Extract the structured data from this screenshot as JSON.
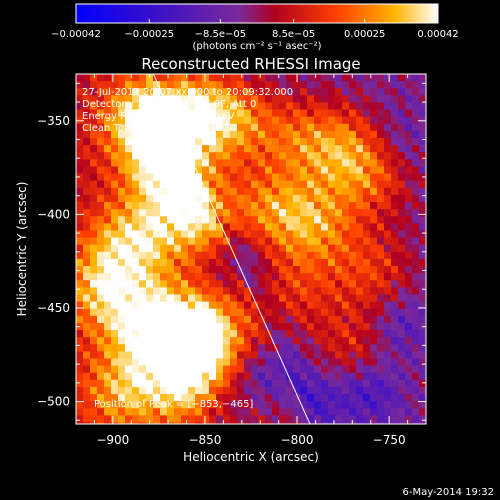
{
  "chart_data": {
    "type": "heatmap",
    "title": "Reconstructed RHESSI Image",
    "xlabel": "Heliocentric X (arcsec)",
    "ylabel": "Heliocentric Y (arcsec)",
    "x_range": [
      -920,
      -730
    ],
    "y_range": [
      -512,
      -325
    ],
    "x_ticks": [
      -900,
      -850,
      -800,
      -750
    ],
    "y_ticks": [
      -350,
      -400,
      -450,
      -500
    ],
    "x_tick_labels": [
      "−900",
      "−850",
      "−800",
      "−750"
    ],
    "y_tick_labels": [
      "−350",
      "−400",
      "−450",
      "−500"
    ],
    "colorbar": {
      "range": [
        -0.00042,
        0.00042
      ],
      "ticks": [
        -0.00042,
        -0.00025,
        -8.5e-05,
        8.5e-05,
        0.00025,
        0.00042
      ],
      "tick_labels": [
        "−0.00042",
        "−0.00025",
        "−8.5e−05",
        "8.5e−05",
        "0.00025",
        "0.00042"
      ],
      "units": "(photons cm⁻² s⁻¹ asec⁻²)"
    },
    "annotations": [
      "27-Jul-2012 20:07:xx.000 to 20:09:32.000",
      "Detectors: 3F 5F 6F 7F 8F 9F, Att 0",
      "Energy Range: 12.0 - 25.0 keV",
      "Clean     Total counts: 1.70E+03"
    ],
    "peak_label": "Position of Peak = [−853,−465]",
    "peak": [
      -853,
      -465
    ],
    "limb_line": [
      [
        -878,
        -325
      ],
      [
        -793,
        -512
      ]
    ],
    "hot_spots": [
      {
        "x": -860,
        "y": -345,
        "v": 0.00036
      },
      {
        "x": -885,
        "y": -350,
        "v": 0.0003
      },
      {
        "x": -870,
        "y": -375,
        "v": 0.00033
      },
      {
        "x": -855,
        "y": -400,
        "v": 0.00031
      },
      {
        "x": -835,
        "y": -350,
        "v": 0.00028
      },
      {
        "x": -890,
        "y": -415,
        "v": 0.00029
      },
      {
        "x": -905,
        "y": -440,
        "v": 0.00026
      },
      {
        "x": -880,
        "y": -460,
        "v": 0.00034
      },
      {
        "x": -853,
        "y": -465,
        "v": 0.00042
      },
      {
        "x": -860,
        "y": -490,
        "v": 0.0003
      },
      {
        "x": -895,
        "y": -495,
        "v": 0.00024
      },
      {
        "x": -800,
        "y": -360,
        "v": 0.0002
      },
      {
        "x": -775,
        "y": -365,
        "v": 0.00023
      },
      {
        "x": -815,
        "y": -397,
        "v": 0.00024
      },
      {
        "x": -790,
        "y": -405,
        "v": 0.00027
      },
      {
        "x": -760,
        "y": -380,
        "v": 0.00019
      },
      {
        "x": -760,
        "y": -430,
        "v": 0.00018
      },
      {
        "x": -800,
        "y": -440,
        "v": 0.00016
      },
      {
        "x": -770,
        "y": -470,
        "v": 0.00015
      }
    ],
    "cold_spots": [
      {
        "x": -835,
        "y": -425,
        "v": -0.00012
      },
      {
        "x": -815,
        "y": -485,
        "v": -0.00018
      },
      {
        "x": -760,
        "y": -495,
        "v": -0.00016
      },
      {
        "x": -790,
        "y": -500,
        "v": -0.00014
      },
      {
        "x": -745,
        "y": -460,
        "v": -0.00012
      },
      {
        "x": -840,
        "y": -500,
        "v": -0.0001
      },
      {
        "x": -745,
        "y": -360,
        "v": -8e-05
      }
    ]
  },
  "footer": {
    "timestamp": "6-May-2014 19:32"
  }
}
